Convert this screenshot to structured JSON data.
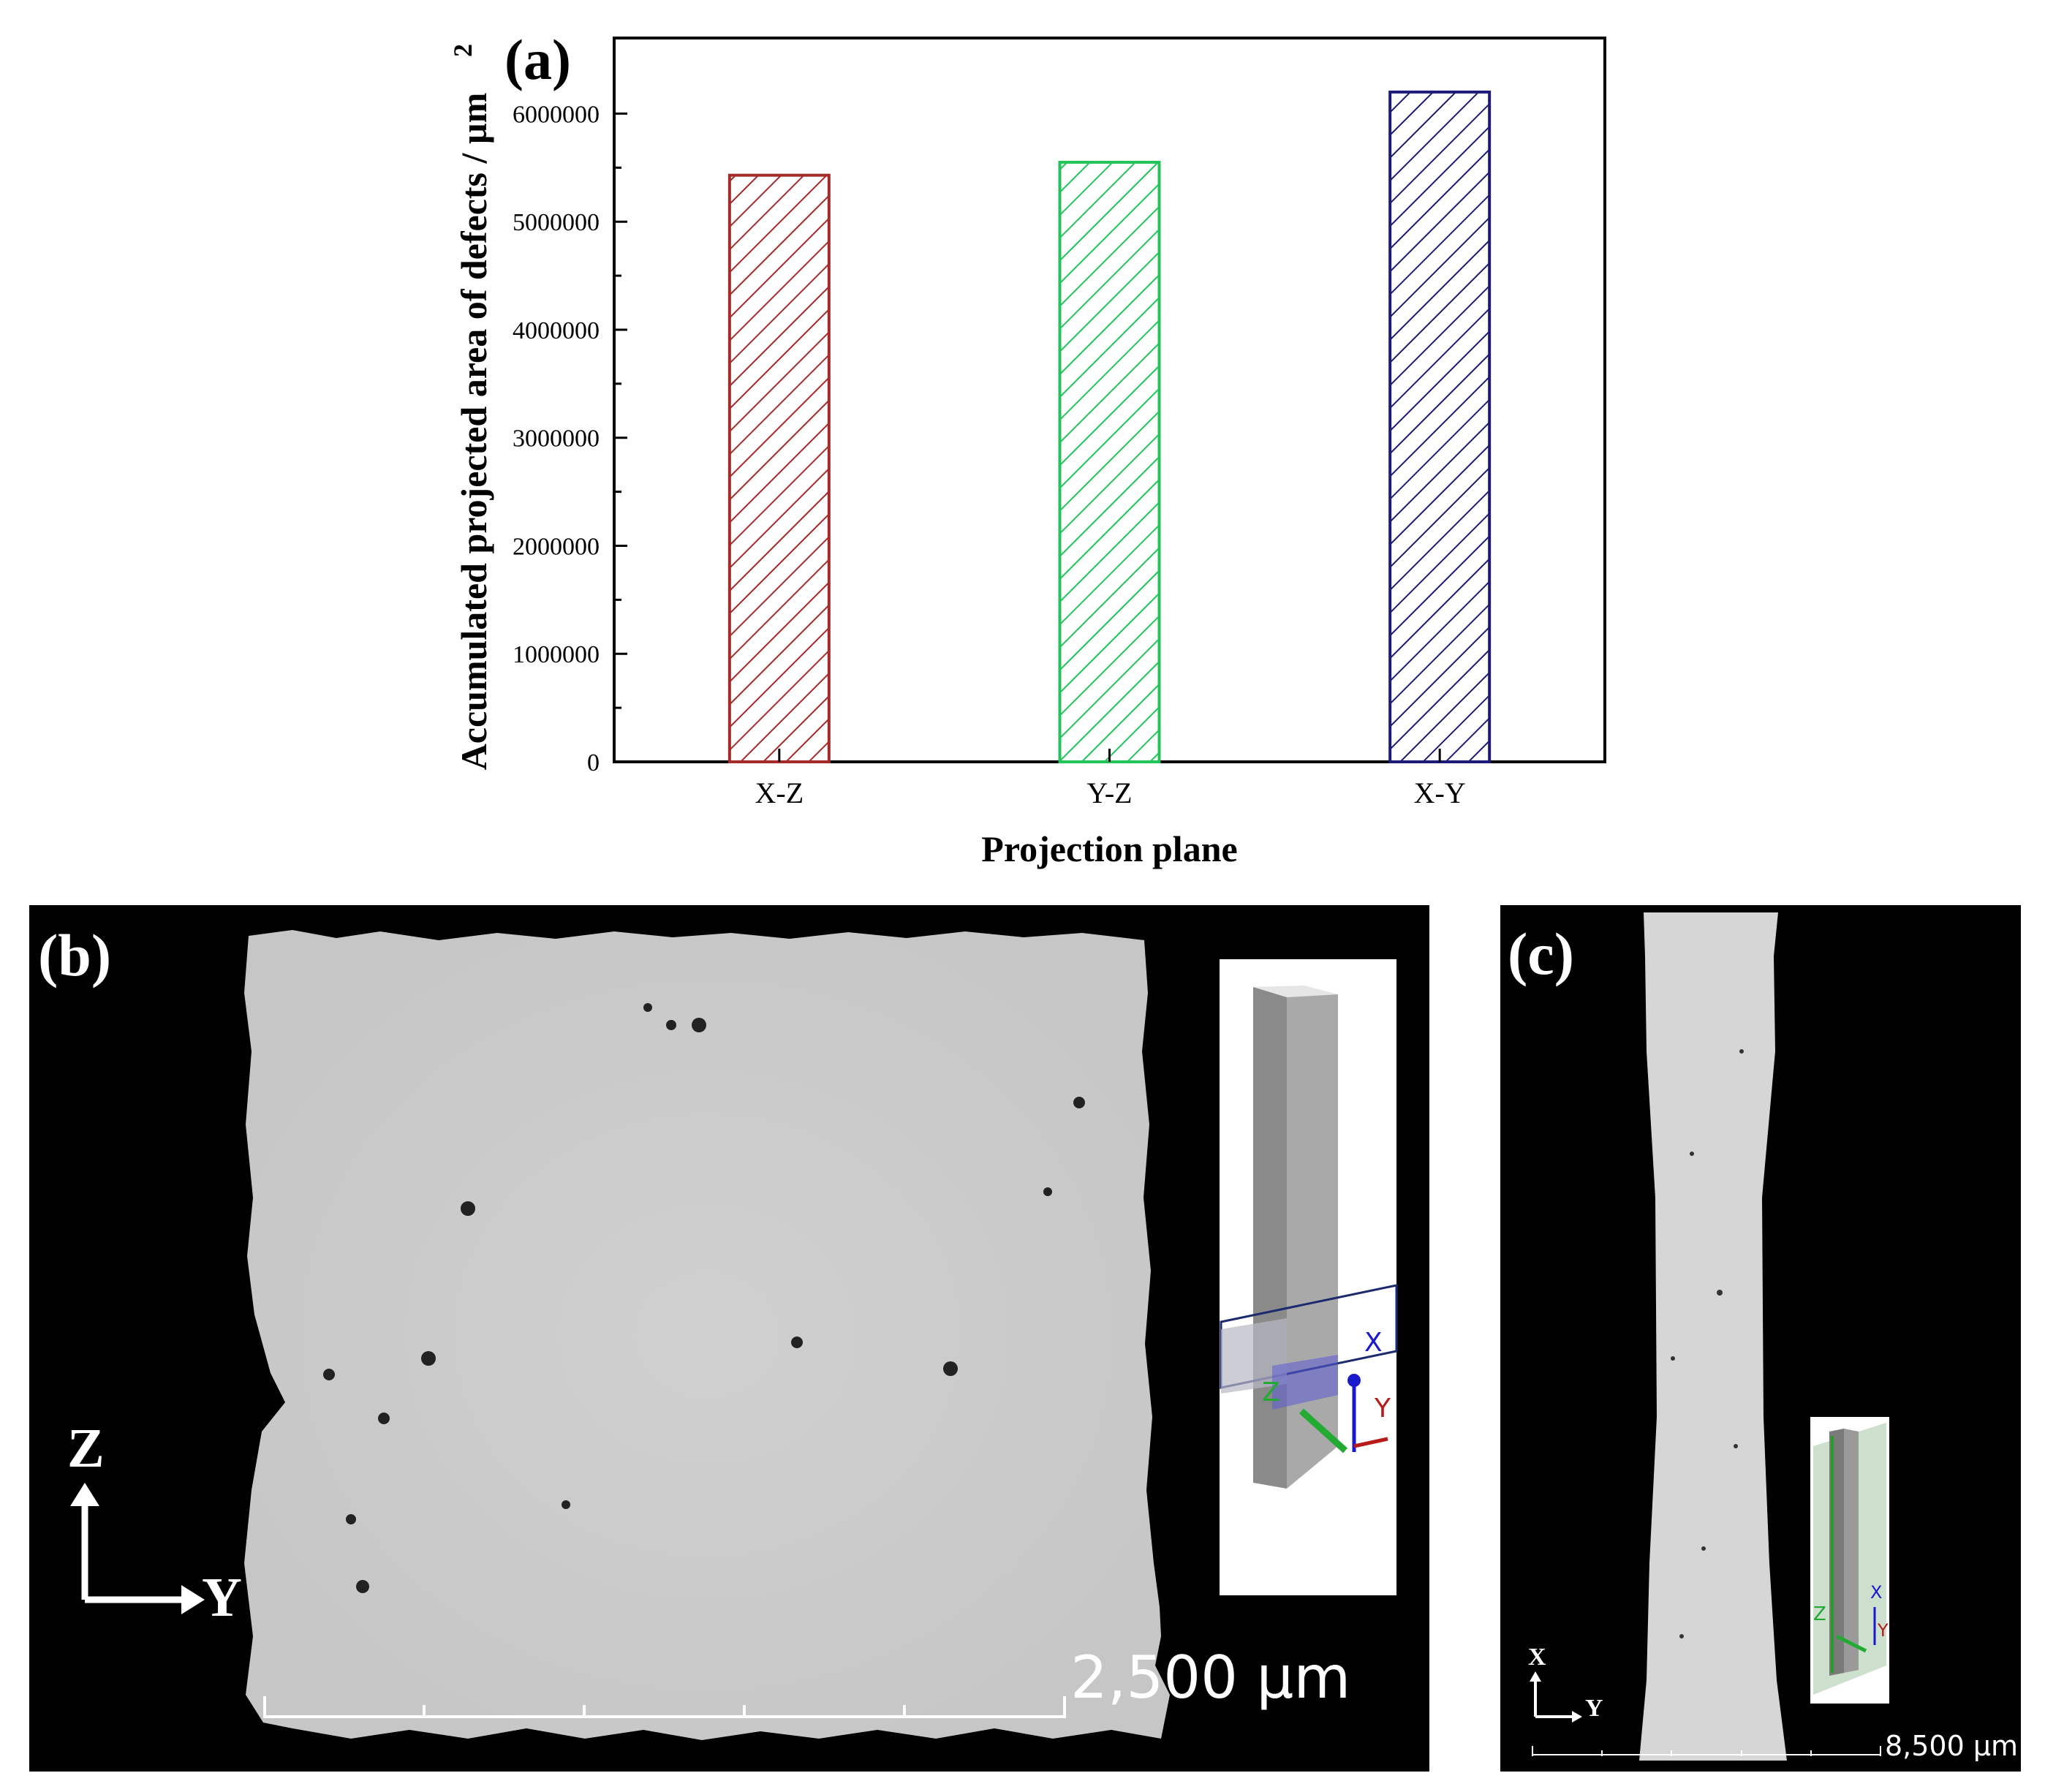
{
  "chart_data": {
    "type": "bar",
    "panel_label": "(a)",
    "categories": [
      "X-Z",
      "Y-Z",
      "X-Y"
    ],
    "values": [
      5430000,
      5550000,
      6200000
    ],
    "colors": [
      "#a52a2a",
      "#22c45a",
      "#1c1c78"
    ],
    "xlabel": "Projection plane",
    "ylabel": "Accumulated projected area of defects / µm",
    "ylabel_superscript": "2",
    "ylim": [
      0,
      6700000
    ],
    "yticks": [
      0,
      1000000,
      2000000,
      3000000,
      4000000,
      5000000,
      6000000
    ],
    "ytick_labels": [
      "0",
      "1000000",
      "2000000",
      "3000000",
      "4000000",
      "5000000",
      "6000000"
    ],
    "grid": false,
    "pattern": "diagonal hatch"
  },
  "panel_b": {
    "label": "(b)",
    "scale_bar": "2,500 µm",
    "axis_vertical": "Z",
    "axis_horizontal": "Y",
    "inset_axes": [
      "X",
      "Y",
      "Z"
    ]
  },
  "panel_c": {
    "label": "(c)",
    "scale_bar": "8,500 µm",
    "axis_vertical": "X",
    "axis_horizontal": "Y",
    "inset_axes": [
      "X",
      "Y",
      "Z"
    ]
  }
}
